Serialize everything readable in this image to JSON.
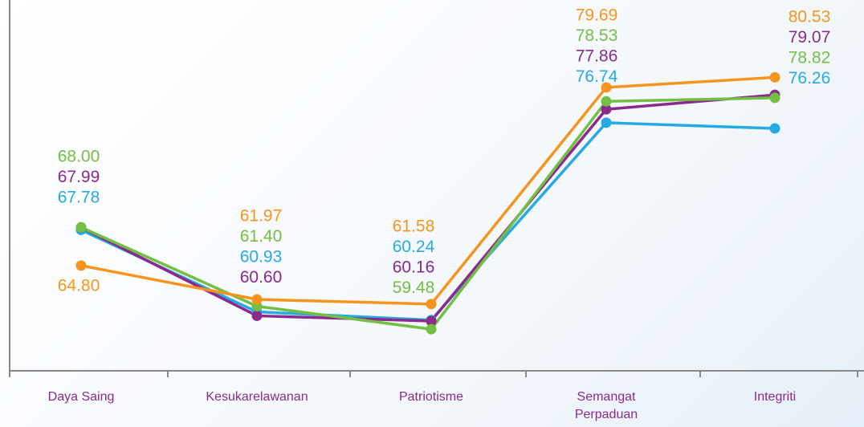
{
  "chart_data": {
    "type": "line",
    "categories": [
      "Daya Saing",
      "Kesukarelawanan",
      "Patriotisme",
      "Semangat Perpaduan",
      "Integriti"
    ],
    "series": [
      {
        "color": "#27aae1",
        "values": [
          67.78,
          60.93,
          60.24,
          76.74,
          76.26
        ],
        "value_labels": [
          "67.78",
          "60.93",
          "60.24",
          "76.74",
          "76.26"
        ]
      },
      {
        "color": "#8b2a8c",
        "values": [
          67.99,
          60.6,
          60.16,
          77.86,
          79.07
        ],
        "value_labels": [
          "67.99",
          "60.60",
          "60.16",
          "77.86",
          "79.07"
        ]
      },
      {
        "color": "#72bf44",
        "values": [
          68.0,
          61.4,
          59.48,
          78.53,
          78.82
        ],
        "value_labels": [
          "68.00",
          "61.40",
          "59.48",
          "78.53",
          "78.82"
        ]
      },
      {
        "color": "#f7941d",
        "values": [
          64.8,
          61.97,
          61.58,
          79.69,
          80.53
        ],
        "value_labels": [
          "64.80",
          "61.97",
          "61.58",
          "79.69",
          "80.53"
        ]
      }
    ],
    "ylim": [
      56,
      87
    ]
  }
}
